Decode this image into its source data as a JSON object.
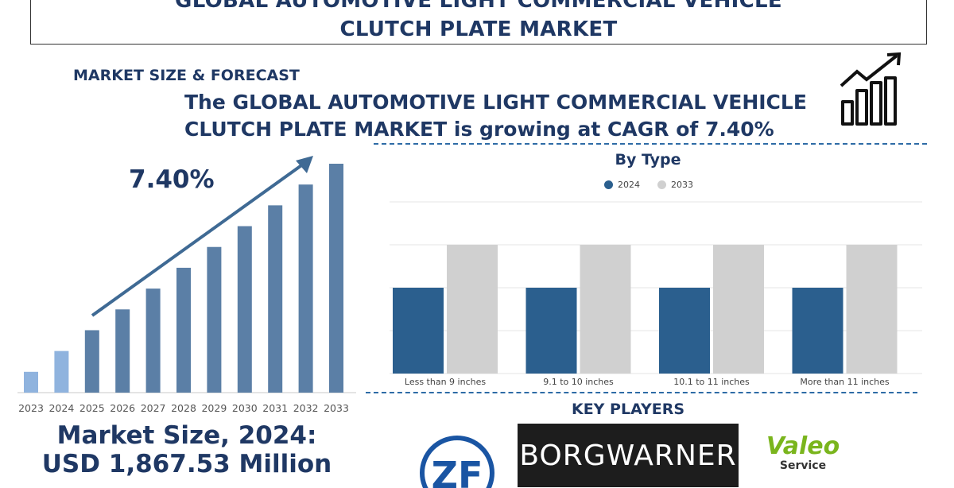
{
  "title": "GLOBAL AUTOMOTIVE LIGHT COMMERCIAL VEHICLE CLUTCH PLATE MARKET",
  "section_label": "MARKET SIZE & FORECAST",
  "headline": "The GLOBAL AUTOMOTIVE LIGHT COMMERCIAL VEHICLE CLUTCH PLATE MARKET is growing at CAGR of 7.40%",
  "market_size_line1": "Market Size, 2024:",
  "market_size_line2": "USD 1,867.53 Million",
  "key_players_title": "KEY PLAYERS",
  "key_players": [
    {
      "name": "ZF",
      "logo_text": "ZF"
    },
    {
      "name": "BorgWarner",
      "logo_text": "BORGWARNER"
    },
    {
      "name": "Valeo Service",
      "logo_text": "Valeo",
      "logo_subtext": "Service"
    }
  ],
  "icons": [
    "growth-bar-chart-icon",
    "trend-arrow-icon"
  ],
  "colors": {
    "navy": "#1f3864",
    "bar_light": "#8fb3de",
    "bar_dark": "#5b7fa6",
    "series_2024": "#2b5f8e",
    "series_2033": "#d0d0d0",
    "valeo_green": "#7ab51d"
  },
  "chart_data": [
    {
      "type": "bar",
      "title": "",
      "annotation": "7.40%",
      "categories": [
        "2023",
        "2024",
        "2025",
        "2026",
        "2027",
        "2028",
        "2029",
        "2030",
        "2031",
        "2032",
        "2033"
      ],
      "values": [
        1,
        2,
        3,
        4,
        5,
        6,
        7,
        8,
        9,
        10,
        11
      ],
      "highlighted_categories": [
        "2023",
        "2024"
      ],
      "xlabel": "",
      "ylabel": "",
      "grid": false
    },
    {
      "type": "bar",
      "title": "By Type",
      "categories": [
        "Less than 9 inches",
        "9.1 to 10 inches",
        "10.1 to 11 inches",
        "More than 11 inches"
      ],
      "series": [
        {
          "name": "2024",
          "values": [
            2,
            2,
            2,
            2
          ]
        },
        {
          "name": "2033",
          "values": [
            3,
            3,
            3,
            3
          ]
        }
      ],
      "ylim": [
        0,
        4
      ],
      "grid": true,
      "legend": "top",
      "xlabel": "",
      "ylabel": ""
    }
  ]
}
